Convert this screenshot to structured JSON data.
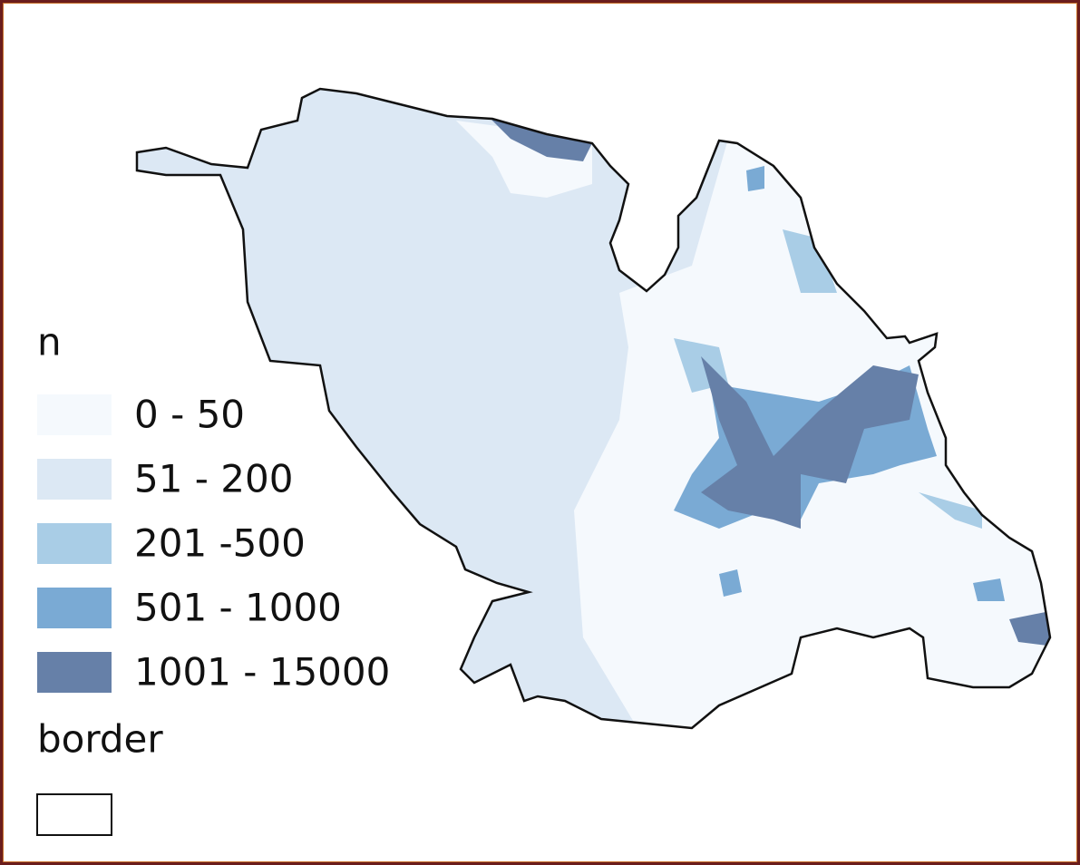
{
  "legend": {
    "title": "n",
    "items": [
      {
        "label": "0 - 50",
        "color": "#f5f9fd"
      },
      {
        "label": "51 - 200",
        "color": "#dce8f4"
      },
      {
        "label": "201 -500",
        "color": "#a9cde6"
      },
      {
        "label": "501 - 1000",
        "color": "#7aaad4"
      },
      {
        "label": "1001 - 15000",
        "color": "#6680a8"
      }
    ]
  },
  "border_legend": {
    "title": "border"
  }
}
